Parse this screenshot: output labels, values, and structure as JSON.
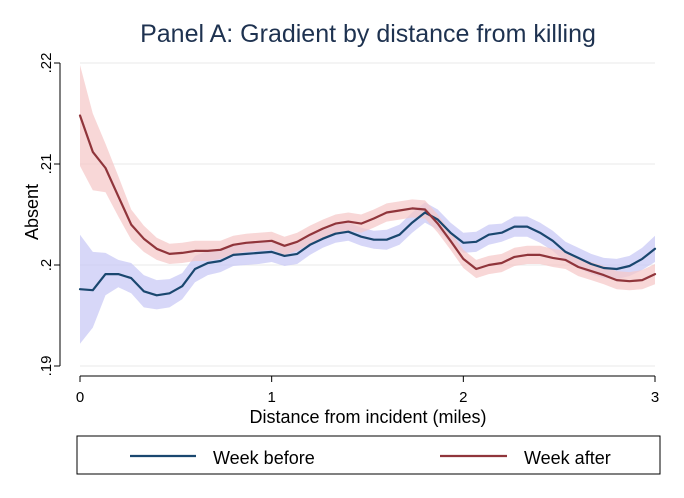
{
  "chart_data": {
    "type": "line",
    "title": "Panel A: Gradient by distance from killing",
    "xlabel": "Distance from incident (miles)",
    "ylabel": "Absent",
    "xlim": [
      0,
      3
    ],
    "ylim": [
      0.19,
      0.22
    ],
    "x_ticks": [
      0,
      1,
      2,
      3
    ],
    "x_tick_labels": [
      "0",
      "1",
      "2",
      "3"
    ],
    "y_ticks": [
      0.19,
      0.2,
      0.21,
      0.22
    ],
    "y_tick_labels": [
      ".19",
      ".2",
      ".21",
      ".22"
    ],
    "grid": true,
    "legend_position": "bottom",
    "x": [
      0,
      0.067,
      0.133,
      0.2,
      0.267,
      0.333,
      0.4,
      0.467,
      0.533,
      0.6,
      0.667,
      0.733,
      0.8,
      0.867,
      0.933,
      1.0,
      1.067,
      1.133,
      1.2,
      1.267,
      1.333,
      1.4,
      1.467,
      1.533,
      1.6,
      1.667,
      1.733,
      1.8,
      1.867,
      1.933,
      2.0,
      2.067,
      2.133,
      2.2,
      2.267,
      2.333,
      2.4,
      2.467,
      2.533,
      2.6,
      2.667,
      2.733,
      2.8,
      2.867,
      2.933,
      3.0
    ],
    "series": [
      {
        "name": "Week before",
        "color": "#1a476f",
        "band_color": "#c8c8f5",
        "values": [
          0.1976,
          0.1975,
          0.1991,
          0.1991,
          0.1987,
          0.1974,
          0.197,
          0.1972,
          0.1979,
          0.1996,
          0.2002,
          0.2004,
          0.201,
          0.2011,
          0.2012,
          0.2013,
          0.2009,
          0.2011,
          0.202,
          0.2026,
          0.2031,
          0.2033,
          0.2028,
          0.2025,
          0.2025,
          0.203,
          0.2042,
          0.2052,
          0.2045,
          0.2032,
          0.2022,
          0.2023,
          0.203,
          0.2032,
          0.2038,
          0.2038,
          0.2032,
          0.2024,
          0.2013,
          0.2007,
          0.2001,
          0.1997,
          0.1996,
          0.1999,
          0.2006,
          0.2016
        ],
        "lower": [
          0.1922,
          0.1938,
          0.197,
          0.1978,
          0.1972,
          0.1958,
          0.1956,
          0.1958,
          0.1966,
          0.1983,
          0.199,
          0.1993,
          0.1999,
          0.2,
          0.2001,
          0.2003,
          0.1999,
          0.2001,
          0.201,
          0.2017,
          0.2022,
          0.2024,
          0.2019,
          0.2016,
          0.2015,
          0.202,
          0.2032,
          0.2042,
          0.2035,
          0.2022,
          0.2012,
          0.2013,
          0.202,
          0.2023,
          0.2028,
          0.2028,
          0.2022,
          0.2014,
          0.2003,
          0.1997,
          0.1991,
          0.1987,
          0.1986,
          0.1989,
          0.1995,
          0.2003
        ],
        "upper": [
          0.203,
          0.2013,
          0.2012,
          0.2005,
          0.2002,
          0.199,
          0.1985,
          0.1986,
          0.1992,
          0.2009,
          0.2014,
          0.2015,
          0.2021,
          0.2022,
          0.2023,
          0.2023,
          0.2019,
          0.2021,
          0.203,
          0.2035,
          0.204,
          0.2042,
          0.2037,
          0.2034,
          0.2035,
          0.204,
          0.2052,
          0.2062,
          0.2055,
          0.2042,
          0.2032,
          0.2033,
          0.204,
          0.2041,
          0.2048,
          0.2048,
          0.2042,
          0.2034,
          0.2023,
          0.2017,
          0.2011,
          0.2007,
          0.2006,
          0.2009,
          0.2017,
          0.2029
        ]
      },
      {
        "name": "Week after",
        "color": "#90353b",
        "band_color": "#f5c8c8",
        "values": [
          0.2148,
          0.2112,
          0.2096,
          0.2068,
          0.204,
          0.2026,
          0.2016,
          0.2011,
          0.2012,
          0.2014,
          0.2014,
          0.2015,
          0.202,
          0.2022,
          0.2023,
          0.2024,
          0.2019,
          0.2023,
          0.203,
          0.2036,
          0.2041,
          0.2043,
          0.2041,
          0.2046,
          0.2052,
          0.2054,
          0.2056,
          0.2055,
          0.2041,
          0.2024,
          0.2006,
          0.1996,
          0.2,
          0.2002,
          0.2008,
          0.201,
          0.201,
          0.2007,
          0.2005,
          0.1998,
          0.1994,
          0.199,
          0.1985,
          0.1984,
          0.1985,
          0.1991
        ],
        "lower": [
          0.2098,
          0.2074,
          0.2072,
          0.2048,
          0.2025,
          0.2013,
          0.2005,
          0.2001,
          0.2002,
          0.2004,
          0.2004,
          0.2006,
          0.2011,
          0.2013,
          0.2014,
          0.2015,
          0.201,
          0.2014,
          0.2021,
          0.2027,
          0.2032,
          0.2034,
          0.2032,
          0.2037,
          0.2043,
          0.2045,
          0.2047,
          0.2046,
          0.2032,
          0.2015,
          0.1997,
          0.1987,
          0.1991,
          0.1993,
          0.1999,
          0.2001,
          0.2001,
          0.1998,
          0.1996,
          0.1989,
          0.1985,
          0.1981,
          0.1976,
          0.1975,
          0.1976,
          0.1981
        ],
        "upper": [
          0.2198,
          0.215,
          0.212,
          0.2088,
          0.2055,
          0.2039,
          0.2027,
          0.2021,
          0.2022,
          0.2024,
          0.2024,
          0.2024,
          0.2029,
          0.2031,
          0.2032,
          0.2033,
          0.2028,
          0.2032,
          0.2039,
          0.2045,
          0.205,
          0.2052,
          0.205,
          0.2055,
          0.2061,
          0.2063,
          0.2065,
          0.2064,
          0.205,
          0.2033,
          0.2015,
          0.2005,
          0.2009,
          0.2011,
          0.2017,
          0.2019,
          0.2019,
          0.2016,
          0.2014,
          0.2007,
          0.2003,
          0.1999,
          0.1994,
          0.1993,
          0.1995,
          0.2001
        ]
      }
    ]
  }
}
